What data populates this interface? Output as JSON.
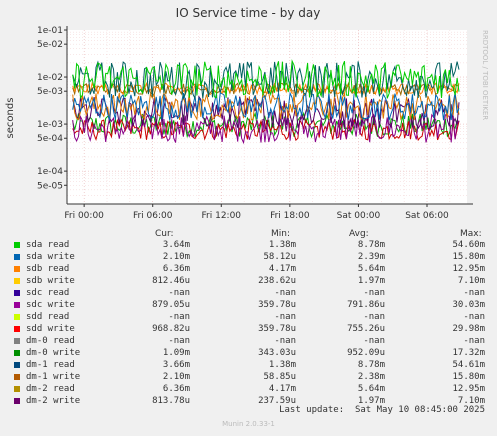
{
  "chart_data": {
    "type": "line",
    "title": "IO Service time - by day",
    "ylabel": "seconds",
    "yscale": "log",
    "ylim": [
      2e-05,
      0.1
    ],
    "ytick_labels": [
      "1e-01",
      "5e-02",
      "1e-02",
      "5e-03",
      "1e-03",
      "5e-04",
      "1e-04",
      "5e-05"
    ],
    "ytick_values": [
      0.1,
      0.05,
      0.01,
      0.005,
      0.001,
      0.0005,
      0.0001,
      5e-05
    ],
    "xtick_labels": [
      "Fri 00:00",
      "Fri 06:00",
      "Fri 12:00",
      "Fri 18:00",
      "Sat 00:00",
      "Sat 06:00"
    ],
    "xtick_hours": [
      0,
      6,
      12,
      18,
      24,
      30
    ],
    "xlim_hours": [
      -1.5,
      33.5
    ],
    "grid": true,
    "legend_placement": "bottom",
    "watermark": "RRDTOOL / TOBI OETIKER",
    "series": [
      {
        "name": "dm-0 write",
        "color": "#00aa00",
        "base": 0.00095,
        "spread": 0.25
      },
      {
        "name": "sdd write",
        "color": "#cc0000",
        "base": 0.00075,
        "spread": 0.22
      },
      {
        "name": "sdc write",
        "color": "#880088",
        "base": 0.0008,
        "spread": 0.3
      },
      {
        "name": "dm-2 write",
        "color": "#550066",
        "base": 0.0018,
        "spread": 0.35
      },
      {
        "name": "dm-1 write",
        "color": "#dd7700",
        "base": 0.0024,
        "spread": 0.3
      },
      {
        "name": "sda write",
        "color": "#0066b3",
        "base": 0.0024,
        "spread": 0.3
      },
      {
        "name": "dm-2 read",
        "color": "#996600",
        "base": 0.0056,
        "spread": 0.12
      },
      {
        "name": "sdb read",
        "color": "#ff8000",
        "base": 0.0056,
        "spread": 0.12
      },
      {
        "name": "dm-1 read",
        "color": "#006060",
        "base": 0.0088,
        "spread": 0.4
      },
      {
        "name": "sda read",
        "color": "#00cc00",
        "base": 0.0088,
        "spread": 0.4
      }
    ]
  },
  "legend": {
    "headers": {
      "cur": "Cur:",
      "min": "Min:",
      "avg": "Avg:",
      "max": "Max:"
    },
    "rows": [
      {
        "label": "sda read",
        "color": "#00cc00",
        "cur": "3.64m",
        "min": "1.38m",
        "avg": "8.78m",
        "max": "54.60m"
      },
      {
        "label": "sda write",
        "color": "#0066b3",
        "cur": "2.10m",
        "min": "58.12u",
        "avg": "2.39m",
        "max": "15.80m"
      },
      {
        "label": "sdb read",
        "color": "#ff8000",
        "cur": "6.36m",
        "min": "4.17m",
        "avg": "5.64m",
        "max": "12.95m"
      },
      {
        "label": "sdb write",
        "color": "#ffcc00",
        "cur": "812.46u",
        "min": "238.62u",
        "avg": "1.97m",
        "max": "7.10m"
      },
      {
        "label": "sdc read",
        "color": "#330099",
        "cur": "-nan",
        "min": "-nan",
        "avg": "-nan",
        "max": "-nan"
      },
      {
        "label": "sdc write",
        "color": "#990099",
        "cur": "879.05u",
        "min": "359.78u",
        "avg": "791.86u",
        "max": "30.03m"
      },
      {
        "label": "sdd read",
        "color": "#ccff00",
        "cur": "-nan",
        "min": "-nan",
        "avg": "-nan",
        "max": "-nan"
      },
      {
        "label": "sdd write",
        "color": "#ff0000",
        "cur": "968.82u",
        "min": "359.78u",
        "avg": "755.26u",
        "max": "29.98m"
      },
      {
        "label": "dm-0 read",
        "color": "#808080",
        "cur": "-nan",
        "min": "-nan",
        "avg": "-nan",
        "max": "-nan"
      },
      {
        "label": "dm-0 write",
        "color": "#008f00",
        "cur": "1.09m",
        "min": "343.03u",
        "avg": "952.09u",
        "max": "17.32m"
      },
      {
        "label": "dm-1 read",
        "color": "#00487d",
        "cur": "3.66m",
        "min": "1.38m",
        "avg": "8.78m",
        "max": "54.61m"
      },
      {
        "label": "dm-1 write",
        "color": "#b35a00",
        "cur": "2.10m",
        "min": "58.85u",
        "avg": "2.38m",
        "max": "15.80m"
      },
      {
        "label": "dm-2 read",
        "color": "#b38f00",
        "cur": "6.36m",
        "min": "4.17m",
        "avg": "5.64m",
        "max": "12.95m"
      },
      {
        "label": "dm-2 write",
        "color": "#6b006b",
        "cur": "813.78u",
        "min": "237.59u",
        "avg": "1.97m",
        "max": "7.10m"
      }
    ]
  },
  "last_update": "Last update:  Sat May 10 08:45:00 2025",
  "footer": "Munin 2.0.33-1"
}
